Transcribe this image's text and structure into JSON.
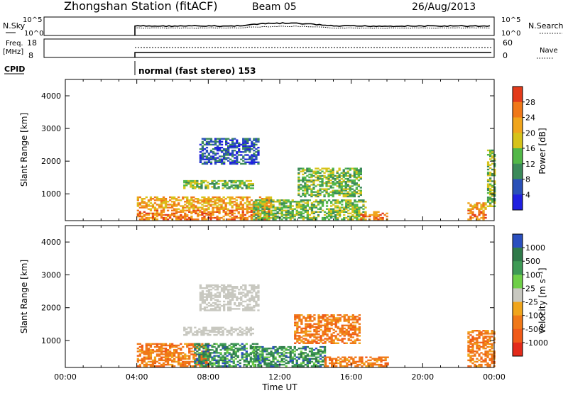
{
  "header": {
    "station": "Zhongshan Station (fitACF)",
    "beam": "Beam 05",
    "date": "26/Aug/2013"
  },
  "summary_panels": {
    "nsky_label": "N.Sky",
    "nsky_ticks": [
      "10^5",
      "10^0"
    ],
    "nsearch_label": "N.Search",
    "nsearch_ticks": [
      "10^5",
      "10^0"
    ],
    "freq_label": "Freq.",
    "freq_unit": "[MHz]",
    "freq_ticks": [
      "18",
      "8"
    ],
    "nave_label": "Nave",
    "nave_ticks": [
      "60",
      "0"
    ],
    "cpid_label": "CPID",
    "cpid_text": "normal (fast stereo) 153"
  },
  "chart_data": [
    {
      "type": "heatmap",
      "name": "power",
      "ylabel": "Slant Range [km]",
      "xlabel": "",
      "yticks": [
        "1000",
        "2000",
        "3000",
        "4000"
      ],
      "ylim": [
        180,
        4500
      ],
      "xlim": [
        0,
        24
      ],
      "colorbar": {
        "label": "Power [dB]",
        "ticks": [
          "4",
          "8",
          "12",
          "16",
          "20",
          "24",
          "28"
        ],
        "range": [
          0,
          32
        ],
        "colors": [
          "#1f1fe0",
          "#2a50b8",
          "#3b8a5a",
          "#52b848",
          "#d6c31a",
          "#f0a51c",
          "#f07818",
          "#e33b1a"
        ]
      },
      "data_regions": [
        {
          "t0": 4.0,
          "t1": 11.5,
          "r0": 200,
          "r1": 900,
          "level": "high"
        },
        {
          "t0": 6.6,
          "t1": 10.5,
          "r0": 1150,
          "r1": 1400,
          "level": "mid"
        },
        {
          "t0": 7.5,
          "t1": 10.8,
          "r0": 1900,
          "r1": 2700,
          "level": "low"
        },
        {
          "t0": 10.5,
          "t1": 16.8,
          "r0": 200,
          "r1": 800,
          "level": "mid"
        },
        {
          "t0": 13.0,
          "t1": 16.5,
          "r0": 900,
          "r1": 1800,
          "level": "mid"
        },
        {
          "t0": 16.5,
          "t1": 18.0,
          "r0": 200,
          "r1": 450,
          "level": "high"
        },
        {
          "t0": 22.5,
          "t1": 23.5,
          "r0": 200,
          "r1": 700,
          "level": "high"
        },
        {
          "t0": 23.6,
          "t1": 24.0,
          "r0": 600,
          "r1": 2400,
          "level": "mid"
        }
      ]
    },
    {
      "type": "heatmap",
      "name": "velocity",
      "ylabel": "Slant Range [km]",
      "xlabel": "Time UT",
      "yticks": [
        "1000",
        "2000",
        "3000",
        "4000"
      ],
      "xticks": [
        "00:00",
        "04:00",
        "08:00",
        "12:00",
        "16:00",
        "20:00",
        "00:00"
      ],
      "ylim": [
        180,
        4500
      ],
      "xlim": [
        0,
        24
      ],
      "colorbar": {
        "label": "Velocity [m s⁻¹]",
        "ticks": [
          "1000",
          "500",
          "100",
          "25",
          "-25",
          "-100",
          "-500",
          "-1000"
        ],
        "colors": [
          "#2a4fbf",
          "#2f7a4a",
          "#3e9a55",
          "#6fcf48",
          "#c8c8c0",
          "#f0a51c",
          "#f07818",
          "#f05a18",
          "#e32a1a"
        ]
      },
      "data_regions": [
        {
          "t0": 4.0,
          "t1": 8.0,
          "r0": 200,
          "r1": 900,
          "vel": "negative"
        },
        {
          "t0": 7.2,
          "t1": 10.8,
          "r0": 200,
          "r1": 900,
          "vel": "positive"
        },
        {
          "t0": 6.6,
          "t1": 10.5,
          "r0": 1150,
          "r1": 1400,
          "vel": "ground"
        },
        {
          "t0": 7.5,
          "t1": 10.8,
          "r0": 1900,
          "r1": 2700,
          "vel": "ground"
        },
        {
          "t0": 10.5,
          "t1": 14.5,
          "r0": 200,
          "r1": 800,
          "vel": "positive"
        },
        {
          "t0": 12.8,
          "t1": 16.5,
          "r0": 900,
          "r1": 1800,
          "vel": "negative"
        },
        {
          "t0": 14.5,
          "t1": 18.0,
          "r0": 200,
          "r1": 500,
          "vel": "negative"
        },
        {
          "t0": 22.5,
          "t1": 24.0,
          "r0": 200,
          "r1": 1300,
          "vel": "negative"
        }
      ]
    }
  ]
}
